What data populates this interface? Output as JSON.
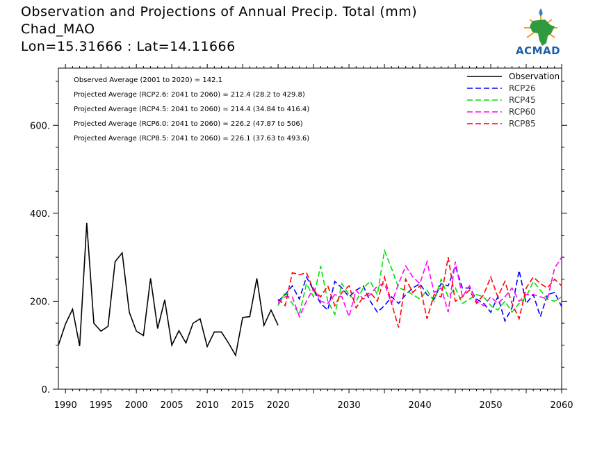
{
  "header": {
    "title_line1": "Observation and Projections of Annual Precip. Total (mm)",
    "title_line2": "Chad_MAO",
    "title_line3": "Lon=15.31666 : Lat=14.11666"
  },
  "logo": {
    "text": "ACMAD",
    "icon": "africa-map-sun-logo"
  },
  "annotations": [
    "Observed Average (2001 to 2020) = 142.1",
    "Projected Average (RCP2.6: 2041 to 2060) = 212.4 (28.2 to 429.8)",
    "Projected Average (RCP4.5: 2041 to 2060) = 214.4 (34.84 to 416.4)",
    "Projected Average (RCP6.0: 2041 to 2060) = 226.2 (47.87 to 506)",
    "Projected Average (RCP8.5: 2041 to 2060) = 226.1 (37.63 to 493.6)"
  ],
  "chart_data": {
    "type": "line",
    "xlim": [
      1989,
      2060
    ],
    "ylim": [
      0,
      730
    ],
    "xticks_labeled": [
      1990,
      1995,
      2000,
      2005,
      2010,
      2015,
      2020,
      2030,
      2040,
      2050,
      2060
    ],
    "yticks": [
      {
        "value": 0,
        "label": "0."
      },
      {
        "value": 200,
        "label": "200."
      },
      {
        "value": 400,
        "label": "400."
      },
      {
        "value": 600,
        "label": "600."
      }
    ],
    "legend_position": "top-right",
    "series": [
      {
        "name": "Observation",
        "color": "#000000",
        "dash": "solid",
        "x": [
          1989,
          1990,
          1991,
          1992,
          1993,
          1994,
          1995,
          1996,
          1997,
          1998,
          1999,
          2000,
          2001,
          2002,
          2003,
          2004,
          2005,
          2006,
          2007,
          2008,
          2009,
          2010,
          2011,
          2012,
          2013,
          2014,
          2015,
          2016,
          2017,
          2018,
          2019,
          2020
        ],
        "y": [
          100,
          148,
          182,
          98,
          378,
          150,
          132,
          143,
          290,
          310,
          175,
          132,
          122,
          252,
          138,
          203,
          100,
          133,
          105,
          150,
          160,
          97,
          130,
          130,
          105,
          77,
          163,
          165,
          252,
          145,
          180,
          145
        ]
      },
      {
        "name": "RCP26",
        "color": "#0000ff",
        "dash": "dashed",
        "x": [
          2020,
          2021,
          2022,
          2023,
          2024,
          2025,
          2026,
          2027,
          2028,
          2029,
          2030,
          2031,
          2032,
          2033,
          2034,
          2035,
          2036,
          2037,
          2038,
          2039,
          2040,
          2041,
          2042,
          2043,
          2044,
          2045,
          2046,
          2047,
          2048,
          2049,
          2050,
          2051,
          2052,
          2053,
          2054,
          2055,
          2056,
          2057,
          2058,
          2059,
          2060
        ],
        "y": [
          200,
          215,
          235,
          205,
          255,
          225,
          195,
          180,
          245,
          230,
          210,
          225,
          235,
          200,
          175,
          190,
          210,
          195,
          215,
          230,
          240,
          215,
          205,
          240,
          235,
          280,
          230,
          230,
          205,
          195,
          175,
          210,
          155,
          185,
          270,
          195,
          215,
          165,
          215,
          220,
          188
        ]
      },
      {
        "name": "RCP45",
        "color": "#00e000",
        "dash": "dashed",
        "x": [
          2020,
          2021,
          2022,
          2023,
          2024,
          2025,
          2026,
          2027,
          2028,
          2029,
          2030,
          2031,
          2032,
          2033,
          2034,
          2035,
          2036,
          2037,
          2038,
          2039,
          2040,
          2041,
          2042,
          2043,
          2044,
          2045,
          2046,
          2047,
          2048,
          2049,
          2050,
          2051,
          2052,
          2053,
          2054,
          2055,
          2056,
          2057,
          2058,
          2059,
          2060
        ],
        "y": [
          190,
          220,
          195,
          170,
          240,
          210,
          280,
          200,
          170,
          240,
          215,
          200,
          230,
          245,
          215,
          315,
          275,
          230,
          225,
          215,
          205,
          225,
          200,
          250,
          210,
          230,
          195,
          205,
          215,
          210,
          190,
          180,
          200,
          175,
          195,
          210,
          245,
          225,
          205,
          200,
          210
        ]
      },
      {
        "name": "RCP60",
        "color": "#ff00ff",
        "dash": "dashed",
        "x": [
          2020,
          2021,
          2022,
          2023,
          2024,
          2025,
          2026,
          2027,
          2028,
          2029,
          2030,
          2031,
          2032,
          2033,
          2034,
          2035,
          2036,
          2037,
          2038,
          2039,
          2040,
          2041,
          2042,
          2043,
          2044,
          2045,
          2046,
          2047,
          2048,
          2049,
          2050,
          2051,
          2052,
          2053,
          2054,
          2055,
          2056,
          2057,
          2058,
          2059,
          2060
        ],
        "y": [
          195,
          210,
          210,
          165,
          200,
          230,
          200,
          195,
          215,
          210,
          165,
          225,
          205,
          215,
          235,
          240,
          195,
          240,
          280,
          255,
          240,
          290,
          220,
          230,
          175,
          290,
          210,
          235,
          200,
          190,
          210,
          195,
          210,
          230,
          200,
          215,
          215,
          210,
          205,
          275,
          300
        ]
      },
      {
        "name": "RCP85",
        "color": "#ff0000",
        "dash": "dashed",
        "x": [
          2020,
          2021,
          2022,
          2023,
          2024,
          2025,
          2026,
          2027,
          2028,
          2029,
          2030,
          2031,
          2032,
          2033,
          2034,
          2035,
          2036,
          2037,
          2038,
          2039,
          2040,
          2041,
          2042,
          2043,
          2044,
          2045,
          2046,
          2047,
          2048,
          2049,
          2050,
          2051,
          2052,
          2053,
          2054,
          2055,
          2056,
          2057,
          2058,
          2059,
          2060
        ],
        "y": [
          205,
          190,
          265,
          260,
          265,
          225,
          210,
          235,
          190,
          220,
          235,
          185,
          210,
          220,
          200,
          255,
          195,
          140,
          250,
          220,
          235,
          160,
          215,
          210,
          300,
          200,
          210,
          225,
          195,
          215,
          255,
          210,
          245,
          195,
          160,
          230,
          255,
          240,
          230,
          250,
          235
        ]
      }
    ]
  }
}
